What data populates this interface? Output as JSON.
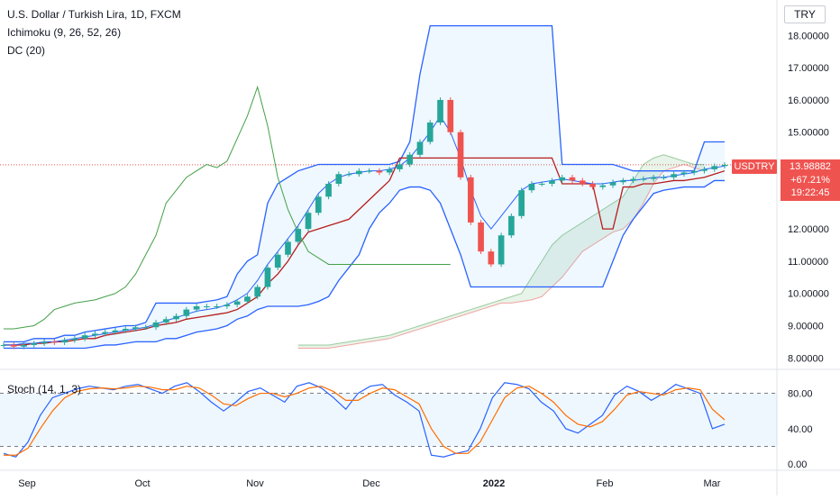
{
  "header": {
    "title": "U.S. Dollar / Turkish Lira, 1D, FXCM",
    "indicator_1": "Ichimoku (9, 26, 52, 26)",
    "indicator_2": "DC (20)",
    "stoch_label": "Stoch (14, 1, 3)",
    "currency": "TRY"
  },
  "last_price": {
    "symbol": "USDTRY",
    "price": "13.98882",
    "change": "+67.21%",
    "countdown": "19:22:45"
  },
  "colors": {
    "up": "#26a69a",
    "down": "#ef5350",
    "donchian": "#2962ff",
    "tenkan": "#2962ff",
    "kijun": "#b71c1c",
    "lagging": "#43a047",
    "stoch_k": "#2962ff",
    "stoch_d": "#ff6d00"
  },
  "chart_data": [
    {
      "type": "candlestick",
      "title": "U.S. Dollar / Turkish Lira, 1D, FXCM",
      "y_ticks": [
        "18.00000",
        "17.00000",
        "16.00000",
        "15.00000",
        "12.00000",
        "11.00000",
        "10.00000",
        "9.00000",
        "8.00000"
      ],
      "y_range": [
        7.7,
        19.1
      ],
      "x_ticks": [
        "Sep",
        "Oct",
        "Nov",
        "Dec",
        "2022",
        "Feb",
        "Mar"
      ],
      "last_value": 13.98882,
      "close_series": [
        8.4,
        8.35,
        8.4,
        8.45,
        8.5,
        8.48,
        8.55,
        8.6,
        8.7,
        8.75,
        8.8,
        8.85,
        8.9,
        8.95,
        8.95,
        9.1,
        9.2,
        9.3,
        9.5,
        9.6,
        9.6,
        9.6,
        9.65,
        9.75,
        9.9,
        10.2,
        10.8,
        11.2,
        11.6,
        12.0,
        12.5,
        13.0,
        13.4,
        13.7,
        13.7,
        13.8,
        13.8,
        13.75,
        13.85,
        14.0,
        14.3,
        14.7,
        15.3,
        16.0,
        15.0,
        13.6,
        12.2,
        11.3,
        10.9,
        11.8,
        12.4,
        13.2,
        13.4,
        13.4,
        13.5,
        13.6,
        13.5,
        13.4,
        13.3,
        13.35,
        13.45,
        13.5,
        13.55,
        13.55,
        13.6,
        13.6,
        13.7,
        13.75,
        13.8,
        13.85,
        13.95,
        13.98882
      ],
      "donchian_upper": [
        8.5,
        8.5,
        8.5,
        8.6,
        8.6,
        8.6,
        8.7,
        8.7,
        8.8,
        8.85,
        8.9,
        8.95,
        9.0,
        9.0,
        9.1,
        9.7,
        9.7,
        9.7,
        9.7,
        9.7,
        9.75,
        9.8,
        9.9,
        10.6,
        11.0,
        11.2,
        12.8,
        13.4,
        13.6,
        13.8,
        13.9,
        14.0,
        14.0,
        14.0,
        14.0,
        14.0,
        14.0,
        14.0,
        14.0,
        14.1,
        14.7,
        16.8,
        18.3,
        18.3,
        18.3,
        18.3,
        18.3,
        18.3,
        18.3,
        18.3,
        18.3,
        18.3,
        18.3,
        18.3,
        18.3,
        14.0,
        14.0,
        14.0,
        14.0,
        14.0,
        14.0,
        13.9,
        13.8,
        13.8,
        13.8,
        13.8,
        13.8,
        13.8,
        13.8,
        14.7,
        14.7,
        14.7
      ],
      "donchian_lower": [
        8.3,
        8.3,
        8.3,
        8.3,
        8.3,
        8.3,
        8.3,
        8.3,
        8.3,
        8.35,
        8.4,
        8.4,
        8.45,
        8.5,
        8.5,
        8.5,
        8.6,
        8.6,
        8.7,
        8.8,
        8.85,
        8.9,
        9.0,
        9.2,
        9.3,
        9.5,
        9.6,
        9.6,
        9.6,
        9.6,
        9.65,
        9.75,
        9.9,
        10.4,
        10.8,
        11.2,
        12.0,
        12.5,
        12.8,
        13.2,
        13.3,
        13.3,
        13.2,
        12.8,
        12.0,
        11.2,
        10.2,
        10.2,
        10.2,
        10.2,
        10.2,
        10.2,
        10.2,
        10.2,
        10.2,
        10.2,
        10.2,
        10.2,
        10.2,
        10.2,
        11.0,
        11.8,
        12.3,
        12.7,
        13.1,
        13.2,
        13.25,
        13.3,
        13.3,
        13.3,
        13.5,
        13.5
      ],
      "kijun": [
        8.4,
        8.4,
        8.4,
        8.45,
        8.45,
        8.5,
        8.5,
        8.55,
        8.6,
        8.6,
        8.7,
        8.75,
        8.8,
        8.85,
        8.9,
        9.0,
        9.05,
        9.1,
        9.2,
        9.25,
        9.3,
        9.35,
        9.4,
        9.5,
        9.7,
        9.9,
        10.3,
        10.6,
        11.0,
        11.5,
        11.9,
        12.0,
        12.1,
        12.2,
        12.3,
        12.6,
        12.9,
        13.2,
        13.5,
        14.2,
        14.2,
        14.2,
        14.2,
        14.2,
        14.2,
        14.2,
        14.2,
        14.2,
        14.2,
        14.2,
        14.2,
        14.2,
        14.2,
        14.2,
        14.2,
        13.4,
        13.4,
        13.4,
        13.4,
        12.0,
        12.0,
        13.3,
        13.3,
        13.4,
        13.4,
        13.45,
        13.5,
        13.5,
        13.55,
        13.6,
        13.7,
        13.8
      ],
      "tenkan": [
        8.4,
        8.4,
        8.45,
        8.45,
        8.5,
        8.5,
        8.55,
        8.6,
        8.65,
        8.7,
        8.75,
        8.8,
        8.85,
        8.9,
        8.95,
        9.05,
        9.15,
        9.25,
        9.35,
        9.45,
        9.5,
        9.55,
        9.65,
        9.8,
        10.0,
        10.4,
        10.9,
        11.3,
        11.7,
        12.1,
        12.6,
        13.1,
        13.4,
        13.6,
        13.7,
        13.75,
        13.8,
        13.8,
        13.85,
        13.95,
        14.2,
        14.6,
        15.0,
        15.5,
        15.0,
        14.2,
        13.2,
        12.4,
        12.0,
        12.4,
        12.8,
        13.2,
        13.4,
        13.45,
        13.5,
        13.55,
        13.5,
        13.45,
        13.4,
        13.4,
        13.45,
        13.5,
        13.5,
        13.55,
        13.6,
        13.6,
        13.65,
        13.7,
        13.75,
        13.85,
        13.9,
        13.95
      ],
      "lagging_span": [
        8.9,
        8.9,
        8.95,
        9.0,
        9.2,
        9.5,
        9.6,
        9.7,
        9.75,
        9.8,
        9.9,
        10.0,
        10.2,
        10.6,
        11.2,
        11.8,
        12.8,
        13.2,
        13.6,
        13.8,
        14.0,
        13.9,
        14.1,
        14.8,
        15.5,
        16.4,
        15.2,
        13.6,
        12.6,
        11.9,
        11.3,
        11.1,
        10.9,
        10.9,
        10.9,
        10.9,
        10.9,
        10.9,
        10.9,
        10.9,
        10.9,
        10.9,
        10.9,
        10.9,
        10.9
      ],
      "senkou_a": [
        8.4,
        8.4,
        8.4,
        8.4,
        8.45,
        8.5,
        8.55,
        8.6,
        8.65,
        8.7,
        8.8,
        8.9,
        9.0,
        9.1,
        9.2,
        9.3,
        9.4,
        9.5,
        9.6,
        9.7,
        9.8,
        9.9,
        10.0,
        10.5,
        11.0,
        11.5,
        11.8,
        12.0,
        12.2,
        12.4,
        12.6,
        12.8,
        13.0,
        13.5,
        14.0,
        14.2,
        14.3,
        14.2,
        14.1,
        14.0,
        14.0
      ],
      "senkou_b": [
        8.3,
        8.3,
        8.3,
        8.3,
        8.35,
        8.4,
        8.45,
        8.5,
        8.55,
        8.6,
        8.7,
        8.8,
        8.9,
        9.0,
        9.1,
        9.2,
        9.3,
        9.4,
        9.5,
        9.6,
        9.7,
        9.7,
        9.75,
        9.8,
        9.9,
        10.2,
        10.5,
        10.9,
        11.3,
        11.5,
        11.7,
        11.9,
        12.0,
        12.3,
        12.8,
        13.4,
        13.8,
        13.9,
        14.0,
        13.9,
        13.8
      ]
    },
    {
      "type": "line",
      "title": "Stoch (14, 1, 3)",
      "y_ticks": [
        "80.00",
        "40.00",
        "0.00"
      ],
      "y_range": [
        -5,
        105
      ],
      "bands": [
        80,
        20
      ],
      "series": [
        {
          "values": [
            12,
            8,
            25,
            55,
            75,
            80,
            85,
            88,
            86,
            84,
            88,
            90,
            85,
            80,
            88,
            92,
            82,
            70,
            60,
            70,
            82,
            86,
            78,
            70,
            88,
            92,
            86,
            75,
            62,
            80,
            88,
            90,
            78,
            70,
            60,
            10,
            8,
            12,
            15,
            40,
            75,
            92,
            90,
            85,
            70,
            60,
            40,
            35,
            45,
            55,
            78,
            88,
            82,
            72,
            80,
            90,
            85,
            80,
            40,
            45
          ]
        },
        {
          "values": [
            10,
            10,
            18,
            40,
            60,
            75,
            82,
            85,
            86,
            85,
            86,
            88,
            87,
            84,
            84,
            88,
            86,
            78,
            68,
            66,
            74,
            80,
            80,
            76,
            80,
            86,
            88,
            82,
            72,
            72,
            80,
            86,
            84,
            76,
            68,
            40,
            20,
            12,
            12,
            25,
            50,
            75,
            86,
            88,
            80,
            70,
            55,
            45,
            42,
            48,
            62,
            78,
            82,
            80,
            78,
            84,
            86,
            84,
            62,
            50
          ]
        }
      ]
    }
  ]
}
